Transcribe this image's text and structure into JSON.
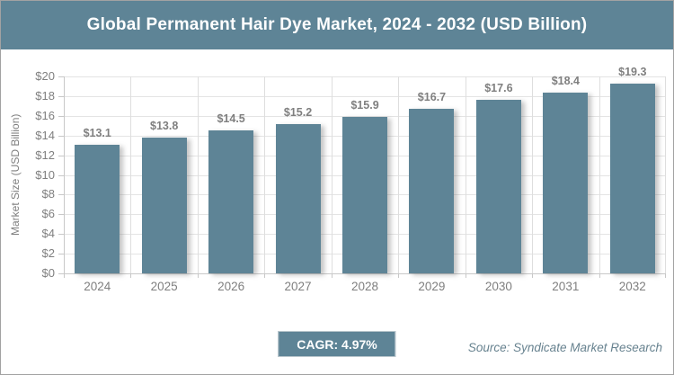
{
  "title": "Global Permanent Hair Dye Market, 2024 - 2032 (USD Billion)",
  "chart_data": {
    "type": "bar",
    "title": "Global Permanent Hair Dye Market, 2024 - 2032 (USD Billion)",
    "categories": [
      "2024",
      "2025",
      "2026",
      "2027",
      "2028",
      "2029",
      "2030",
      "2031",
      "2032"
    ],
    "values": [
      13.1,
      13.8,
      14.5,
      15.2,
      15.9,
      16.7,
      17.6,
      18.4,
      19.3
    ],
    "value_labels": [
      "$13.1",
      "$13.8",
      "$14.5",
      "$15.2",
      "$15.9",
      "$16.7",
      "$17.6",
      "$18.4",
      "$19.3"
    ],
    "xlabel": "",
    "ylabel": "Market Size (USD Billion)",
    "ylim": [
      0,
      20
    ],
    "ytick_step": 2,
    "ytick_labels": [
      "$0",
      "$2",
      "$4",
      "$6",
      "$8",
      "$10",
      "$12",
      "$14",
      "$16",
      "$18",
      "$20"
    ],
    "grid": "both",
    "legend": "none"
  },
  "footer": {
    "cagr_label": "CAGR: 4.97%",
    "source": "Source: Syndicate Market Research"
  },
  "colors": {
    "accent": "#5E8496",
    "bar": "#5E8496",
    "header_text": "#FFFFFF",
    "label_gray": "#7F7F7F",
    "gridline": "#E4E4E4",
    "axis_line": "#C8C8C8",
    "source_text": "#67828F",
    "border": "#A2A2A2"
  }
}
